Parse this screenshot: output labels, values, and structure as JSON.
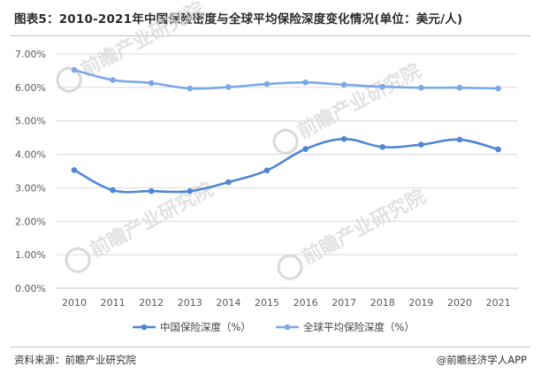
{
  "title": "图表5：2010-2021年中国保险密度与全球平均保险深度变化情况(单位：美元/人)",
  "footer": {
    "source": "资料来源：前瞻产业研究院",
    "credit": "@前瞻经济学人APP"
  },
  "watermark": {
    "text": "前瞻产业研究院",
    "color": "#d9d9d9"
  },
  "colors": {
    "china": "#4f86d6",
    "global": "#7ca9e6",
    "grid": "#d9d9d9",
    "axis_text": "#595959"
  },
  "chart_data": {
    "type": "line",
    "categories": [
      "2010",
      "2011",
      "2012",
      "2013",
      "2014",
      "2015",
      "2016",
      "2017",
      "2018",
      "2019",
      "2020",
      "2021"
    ],
    "yticks": [
      "0.00%",
      "1.00%",
      "2.00%",
      "3.00%",
      "4.00%",
      "5.00%",
      "6.00%",
      "7.00%"
    ],
    "ylim": [
      0,
      7
    ],
    "grid": true,
    "legend_position": "bottom",
    "series": [
      {
        "name": "中国保险深度（%）",
        "color": "#4f86d6",
        "values": [
          3.53,
          2.93,
          2.9,
          2.9,
          3.17,
          3.52,
          4.16,
          4.46,
          4.22,
          4.29,
          4.44,
          4.15
        ]
      },
      {
        "name": "全球平均保险深度（%）",
        "color": "#7ca9e6",
        "values": [
          6.52,
          6.22,
          6.13,
          5.97,
          6.01,
          6.1,
          6.15,
          6.08,
          6.02,
          5.99,
          5.99,
          5.97
        ]
      }
    ]
  }
}
